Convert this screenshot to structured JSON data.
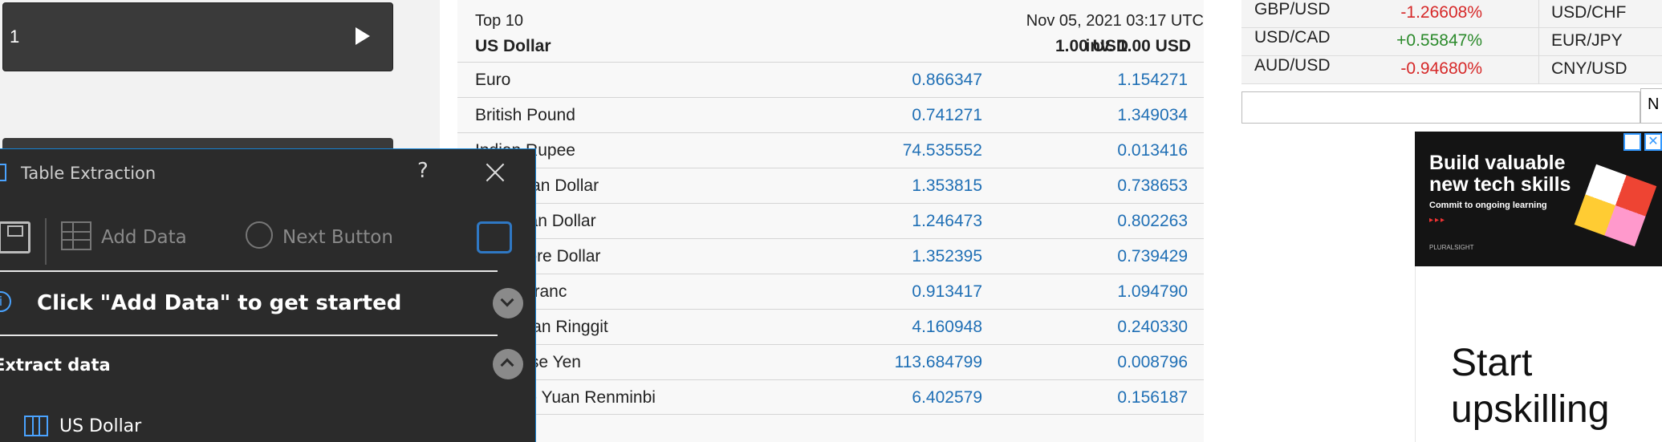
{
  "page_input": {
    "value": "1"
  },
  "panel": {
    "title": "Table Extraction",
    "help": "?",
    "add_data": "Add Data",
    "next_button": "Next Button",
    "info": "i",
    "info_text": "Click \"Add Data\" to get started",
    "extract_label": "Extract data",
    "table_item": "US Dollar"
  },
  "currency": {
    "top": "Top 10",
    "timestamp": "Nov 05, 2021 03:17 UTC",
    "header_name": "US Dollar",
    "header_value": "1.00 USD",
    "header_inverse": "inv. 1.00 USD",
    "rows": [
      {
        "name": "Euro",
        "value": "0.866347",
        "inverse": "1.154271"
      },
      {
        "name": "British Pound",
        "value": "0.741271",
        "inverse": "1.349034"
      },
      {
        "name": "Indian Rupee",
        "value": "74.535552",
        "inverse": "0.013416"
      },
      {
        "name": "Australian Dollar",
        "value": "1.353815",
        "inverse": "0.738653"
      },
      {
        "name": "Canadian Dollar",
        "value": "1.246473",
        "inverse": "0.802263"
      },
      {
        "name": "Singapore Dollar",
        "value": "1.352395",
        "inverse": "0.739429"
      },
      {
        "name": "Swiss Franc",
        "value": "0.913417",
        "inverse": "1.094790"
      },
      {
        "name": "Malaysian Ringgit",
        "value": "4.160948",
        "inverse": "0.240330"
      },
      {
        "name": "Japanese Yen",
        "value": "113.684799",
        "inverse": "0.008796"
      },
      {
        "name": "Chinese Yuan Renminbi",
        "value": "6.402579",
        "inverse": "0.156187"
      }
    ]
  },
  "fx": {
    "rows": [
      {
        "pair": "GBP/USD",
        "change": "-1.26608%",
        "pair2": "USD/CHF"
      },
      {
        "pair": "USD/CAD",
        "change": "+0.55847%",
        "pair2": "EUR/JPY"
      },
      {
        "pair": "AUD/USD",
        "change": "-0.94680%",
        "pair2": "CNY/USD"
      }
    ],
    "search_btn": "N"
  },
  "ad": {
    "headline": "Build valuable new tech skills",
    "sub": "Commit to ongoing learning",
    "dots": "▸▸▸",
    "brand": "PLURALSIGHT",
    "close": "✕",
    "ad2_line1": "Start",
    "ad2_line2": "upskilling"
  },
  "colors": {
    "link": "#1f6fb5",
    "negative": "#d62828",
    "positive": "#2b8a2b",
    "panel_bg": "#2b2b2b"
  }
}
